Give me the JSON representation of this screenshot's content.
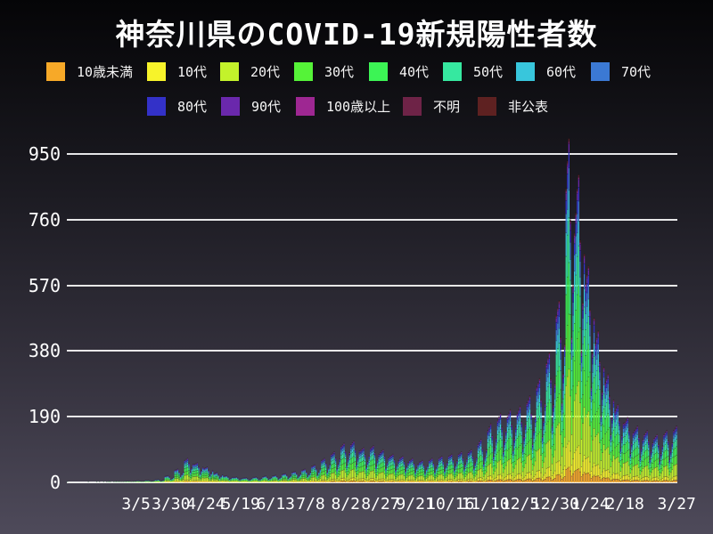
{
  "header": {
    "title": "神奈川県のCOVID-19新規陽性者数"
  },
  "legend": {
    "row_break": 8,
    "items": [
      {
        "key": "age_under10",
        "label": "10歳未満",
        "color": "#F7A928"
      },
      {
        "key": "age_10s",
        "label": "10代",
        "color": "#F7F32A"
      },
      {
        "key": "age_20s",
        "label": "20代",
        "color": "#C3F22B"
      },
      {
        "key": "age_30s",
        "label": "30代",
        "color": "#55F338"
      },
      {
        "key": "age_40s",
        "label": "40代",
        "color": "#3CF455"
      },
      {
        "key": "age_50s",
        "label": "50代",
        "color": "#36E8A0"
      },
      {
        "key": "age_60s",
        "label": "60代",
        "color": "#38C6DC"
      },
      {
        "key": "age_70s",
        "label": "70代",
        "color": "#3B79D4"
      },
      {
        "key": "age_80s",
        "label": "80代",
        "color": "#3331C8"
      },
      {
        "key": "age_90s",
        "label": "90代",
        "color": "#6A28AC"
      },
      {
        "key": "age_100plus",
        "label": "100歳以上",
        "color": "#9E2792"
      },
      {
        "key": "unknown",
        "label": "不明",
        "color": "#6E2347"
      },
      {
        "key": "not_disclosed",
        "label": "非公表",
        "color": "#5E2121"
      }
    ]
  },
  "colors": {
    "background_top": "#050507",
    "background_bottom": "#4E4A5A",
    "grid": "#F5F5F5",
    "text": "#FFFFFF"
  },
  "chart_data": {
    "type": "bar",
    "stacked": true,
    "title": "神奈川県のCOVID-19新規陽性者数",
    "xlabel": "",
    "ylabel": "",
    "grid": "horizontal",
    "legend_position": "top",
    "x_axis": {
      "start_date": "2020-01-16",
      "end_date": "2021-03-27",
      "tick_labels": [
        "3/5",
        "3/30",
        "4/24",
        "5/19",
        "6/13",
        "7/8",
        "8/2",
        "8/27",
        "9/21",
        "10/16",
        "11/10",
        "12/5",
        "12/30",
        "1/24",
        "2/18",
        "3/27"
      ],
      "tick_day_indices": [
        49,
        74,
        99,
        124,
        149,
        174,
        199,
        224,
        249,
        274,
        299,
        324,
        349,
        374,
        399,
        436
      ]
    },
    "y_axis": {
      "ticks": [
        0,
        190,
        380,
        570,
        760,
        950
      ],
      "ylim": [
        0,
        1010
      ]
    },
    "series_order": [
      "age_under10",
      "age_10s",
      "age_20s",
      "age_30s",
      "age_40s",
      "age_50s",
      "age_60s",
      "age_70s",
      "age_80s",
      "age_90s",
      "age_100plus",
      "unknown",
      "not_disclosed"
    ],
    "age_share": {
      "age_under10": 0.045,
      "age_10s": 0.075,
      "age_20s": 0.21,
      "age_30s": 0.16,
      "age_40s": 0.15,
      "age_50s": 0.13,
      "age_60s": 0.08,
      "age_70s": 0.065,
      "age_80s": 0.045,
      "age_90s": 0.025,
      "age_100plus": 0.004,
      "unknown": 0.006,
      "not_disclosed": 0.005
    },
    "peak": {
      "date": "2021-01-09",
      "value": 995
    },
    "daily_totals": [
      1,
      0,
      0,
      0,
      0,
      0,
      0,
      0,
      0,
      0,
      0,
      0,
      0,
      0,
      0,
      1,
      0,
      0,
      0,
      0,
      0,
      1,
      0,
      1,
      0,
      0,
      1,
      0,
      1,
      1,
      2,
      1,
      0,
      1,
      1,
      2,
      1,
      2,
      1,
      1,
      1,
      2,
      2,
      3,
      3,
      2,
      1,
      2,
      2,
      3,
      4,
      4,
      3,
      2,
      2,
      3,
      5,
      5,
      5,
      4,
      2,
      3,
      4,
      7,
      7,
      8,
      6,
      3,
      5,
      6,
      17,
      18,
      19,
      15,
      8,
      11,
      14,
      35,
      36,
      38,
      30,
      17,
      23,
      29,
      63,
      66,
      69,
      55,
      30,
      41,
      52,
      52,
      54,
      56,
      45,
      25,
      34,
      43,
      40,
      42,
      44,
      35,
      19,
      26,
      33,
      25,
      26,
      28,
      22,
      12,
      17,
      21,
      17,
      18,
      19,
      15,
      8,
      11,
      14,
      14,
      14,
      15,
      12,
      7,
      9,
      11,
      12,
      12,
      13,
      10,
      6,
      8,
      10,
      14,
      14,
      15,
      12,
      7,
      9,
      11,
      16,
      17,
      18,
      14,
      8,
      11,
      13,
      18,
      19,
      20,
      16,
      9,
      12,
      15,
      23,
      24,
      25,
      20,
      11,
      15,
      19,
      29,
      30,
      31,
      25,
      14,
      19,
      24,
      35,
      36,
      38,
      30,
      17,
      23,
      29,
      46,
      48,
      50,
      40,
      22,
      30,
      38,
      63,
      66,
      69,
      55,
      30,
      41,
      52,
      81,
      84,
      88,
      70,
      39,
      53,
      67,
      104,
      108,
      113,
      90,
      50,
      68,
      86,
      109,
      114,
      119,
      95,
      52,
      71,
      90,
      92,
      96,
      100,
      80,
      44,
      60,
      76,
      98,
      102,
      106,
      85,
      47,
      64,
      81,
      86,
      90,
      94,
      75,
      41,
      56,
      71,
      75,
      78,
      81,
      65,
      36,
      49,
      62,
      69,
      72,
      75,
      60,
      33,
      45,
      57,
      63,
      66,
      69,
      55,
      30,
      41,
      52,
      58,
      60,
      63,
      50,
      28,
      38,
      48,
      63,
      66,
      69,
      55,
      30,
      41,
      52,
      69,
      72,
      75,
      60,
      33,
      45,
      57,
      75,
      78,
      81,
      65,
      36,
      49,
      62,
      81,
      84,
      88,
      70,
      39,
      53,
      67,
      86,
      90,
      94,
      75,
      41,
      56,
      71,
      110,
      118,
      124,
      98,
      54,
      74,
      94,
      150,
      160,
      170,
      135,
      75,
      100,
      128,
      180,
      190,
      200,
      160,
      88,
      120,
      150,
      190,
      200,
      210,
      168,
      92,
      126,
      160,
      200,
      210,
      220,
      176,
      97,
      132,
      168,
      230,
      240,
      250,
      200,
      110,
      150,
      190,
      276,
      288,
      300,
      240,
      132,
      180,
      228,
      345,
      360,
      375,
      300,
      165,
      225,
      285,
      483,
      504,
      525,
      420,
      231,
      315,
      399,
      850,
      930,
      995,
      760,
      420,
      570,
      720,
      780,
      850,
      890,
      700,
      380,
      520,
      660,
      575,
      600,
      625,
      500,
      275,
      375,
      475,
      403,
      420,
      438,
      350,
      193,
      263,
      333,
      288,
      300,
      313,
      250,
      138,
      188,
      238,
      207,
      216,
      225,
      180,
      99,
      135,
      171,
      173,
      180,
      188,
      150,
      83,
      113,
      143,
      150,
      156,
      163,
      130,
      72,
      98,
      124,
      138,
      144,
      150,
      120,
      66,
      90,
      114,
      127,
      132,
      138,
      110,
      61,
      83,
      105,
      138,
      144,
      150,
      120,
      66,
      90,
      114,
      150,
      156,
      163
    ]
  }
}
